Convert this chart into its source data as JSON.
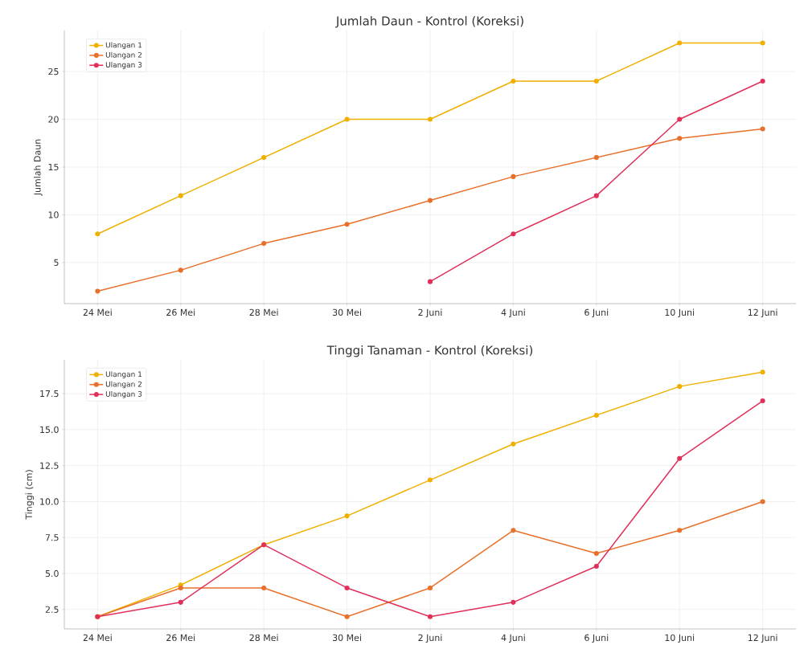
{
  "chart_data": [
    {
      "type": "line",
      "title": "Jumlah Daun - Kontrol (Koreksi)",
      "ylabel": "Jumlah Daun",
      "categories": [
        "24 Mei",
        "26 Mei",
        "28 Mei",
        "30 Mei",
        "2 Juni",
        "4 Juni",
        "6 Juni",
        "10 Juni",
        "12 Juni"
      ],
      "series": [
        {
          "name": "Ulangan 1",
          "color": "#f0b000",
          "values": [
            8,
            12,
            16,
            20,
            20,
            24,
            24,
            28,
            28
          ]
        },
        {
          "name": "Ulangan 2",
          "color": "#e8702a",
          "values": [
            2,
            4.2,
            7,
            9,
            11.5,
            14,
            16,
            18,
            19
          ]
        },
        {
          "name": "Ulangan 3",
          "color": "#e0305a",
          "values": [
            null,
            null,
            null,
            null,
            3,
            8,
            12,
            20,
            24
          ]
        }
      ],
      "ylim": [
        0.7,
        29.3
      ],
      "yticks": [
        5,
        10,
        15,
        20,
        25
      ],
      "grid": true,
      "legend": "top left",
      "marker": "circle"
    },
    {
      "type": "line",
      "title": "Tinggi Tanaman - Kontrol (Koreksi)",
      "ylabel": "Tinggi (cm)",
      "categories": [
        "24 Mei",
        "26 Mei",
        "28 Mei",
        "30 Mei",
        "2 Juni",
        "4 Juni",
        "6 Juni",
        "10 Juni",
        "12 Juni"
      ],
      "series": [
        {
          "name": "Ulangan 1",
          "color": "#f0b000",
          "values": [
            2,
            4.2,
            7,
            9,
            11.5,
            14,
            16,
            18,
            19
          ]
        },
        {
          "name": "Ulangan 2",
          "color": "#e8702a",
          "values": [
            2,
            4,
            4,
            2,
            4,
            8,
            6.4,
            8,
            10
          ]
        },
        {
          "name": "Ulangan 3",
          "color": "#e0305a",
          "values": [
            2,
            3,
            7,
            4,
            2,
            3,
            5.5,
            13,
            17
          ]
        }
      ],
      "ylim": [
        1.15,
        19.85
      ],
      "yticks": [
        {
          "value": 2.5,
          "label": "2.5"
        },
        {
          "value": 5,
          "label": "5.0"
        },
        {
          "value": 7.5,
          "label": "7.5"
        },
        {
          "value": 10,
          "label": "10.0"
        },
        {
          "value": 12.5,
          "label": "12.5"
        },
        {
          "value": 15,
          "label": "15.0"
        },
        {
          "value": 17.5,
          "label": "17.5"
        }
      ],
      "grid": true,
      "legend": "top left",
      "marker": "circle"
    }
  ]
}
